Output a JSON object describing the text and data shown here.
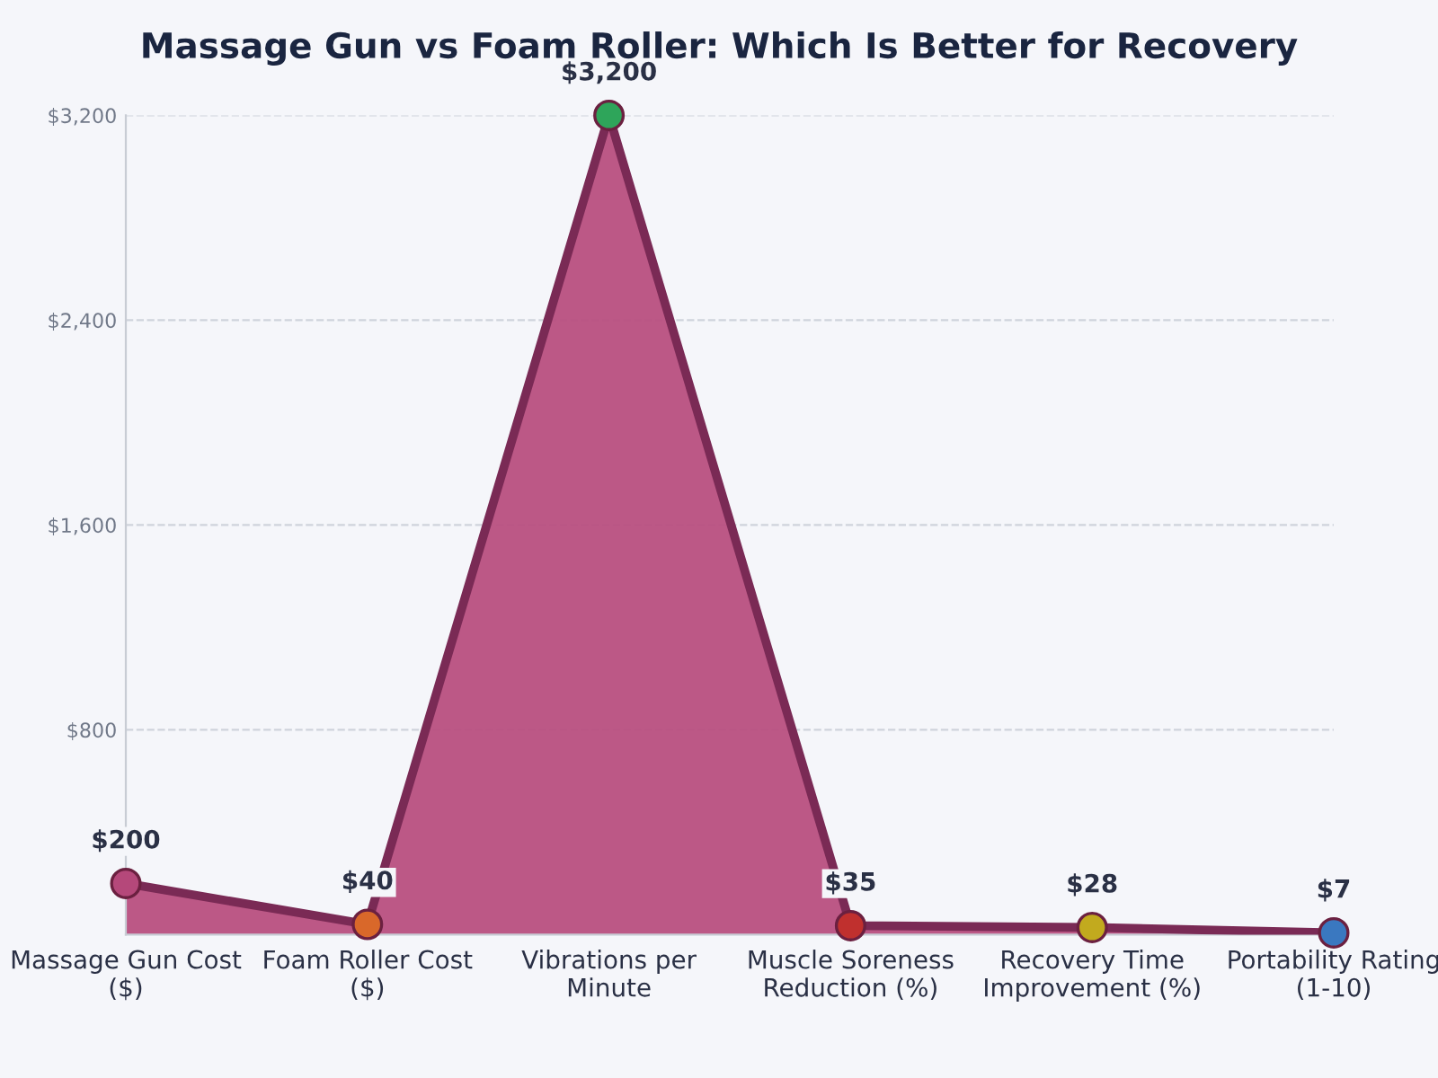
{
  "chart_data": {
    "type": "area",
    "title": "Massage Gun vs Foam Roller: Which Is Better for Recovery",
    "categories": [
      "Massage Gun Cost\n($)",
      "Foam Roller Cost\n($)",
      "Vibrations per\nMinute",
      "Muscle Soreness\nReduction (%)",
      "Recovery Time\nImprovement (%)",
      "Portability Rating\n(1-10)"
    ],
    "series": [
      {
        "color": "#b84f80",
        "values": [
          200,
          40,
          3200,
          35,
          28,
          7
        ],
        "colors": [
          "#b5487a",
          "#d9682a",
          "#2ea55a",
          "#c0302e",
          "#c2aa1e",
          "#3a78c0"
        ],
        "value_labels": [
          "$200",
          "$40",
          "$3,200",
          "$35",
          "$28",
          "$7"
        ]
      }
    ],
    "ylim": [
      0,
      3200
    ],
    "yticks": [
      {
        "value": 800,
        "label": "$800"
      },
      {
        "value": 1600,
        "label": "$1,600"
      },
      {
        "value": 2400,
        "label": "$2,400"
      },
      {
        "value": 3200,
        "label": "$3,200"
      }
    ],
    "grid": "y",
    "marker": "circle",
    "line_style": "solid"
  }
}
